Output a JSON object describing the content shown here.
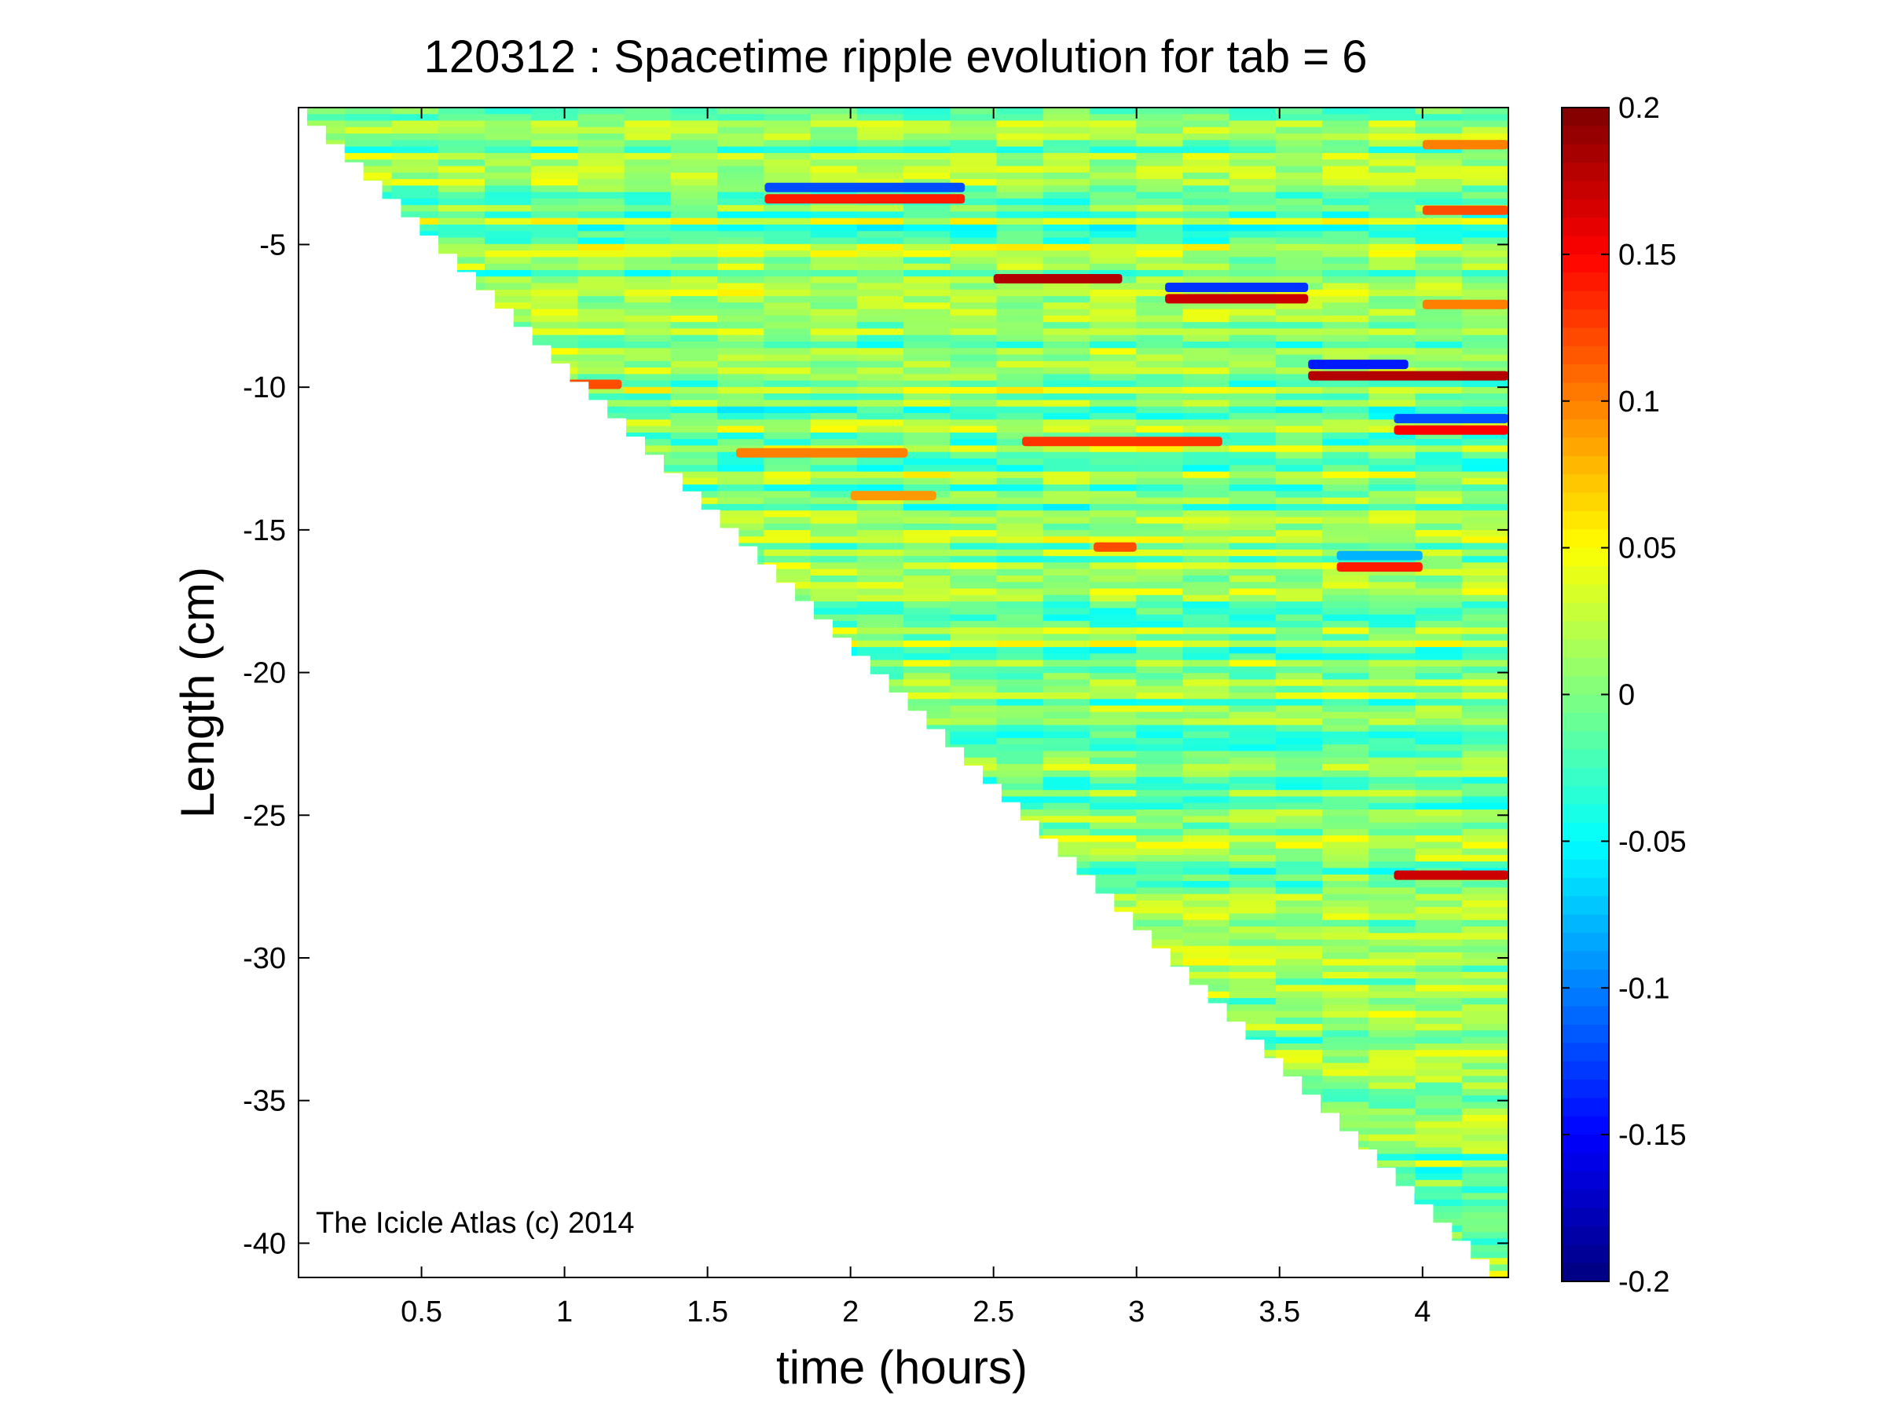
{
  "chart_data": {
    "type": "heatmap",
    "title": "120312 : Spacetime ripple evolution for tab = 6",
    "xlabel": "time (hours)",
    "ylabel": "Length (cm)",
    "xlim": [
      0.07,
      4.3
    ],
    "ylim": [
      -41.2,
      -0.2
    ],
    "xticks": [
      0.5,
      1,
      1.5,
      2,
      2.5,
      3,
      3.5,
      4
    ],
    "xtick_labels": [
      "0.5",
      "1",
      "1.5",
      "2",
      "2.5",
      "3",
      "3.5",
      "4"
    ],
    "yticks": [
      -5,
      -10,
      -15,
      -20,
      -25,
      -30,
      -35,
      -40
    ],
    "ytick_labels": [
      "-5",
      "-10",
      "-15",
      "-20",
      "-25",
      "-30",
      "-35",
      "-40"
    ],
    "colorbar": {
      "range": [
        -0.2,
        0.2
      ],
      "ticks": [
        0.2,
        0.15,
        0.1,
        0.05,
        0,
        -0.05,
        -0.1,
        -0.15,
        -0.2
      ],
      "tick_labels": [
        "0.2",
        "0.15",
        "0.1",
        "0.05",
        "0",
        "-0.05",
        "-0.1",
        "-0.15",
        "-0.2"
      ],
      "colormap": "jet"
    },
    "data_region": {
      "description_free_boundary": "values exist only where length >= -9.8 * (time - 0.1)",
      "boundary_points": [
        [
          0.1,
          -0.2
        ],
        [
          4.3,
          -41.2
        ]
      ]
    },
    "features": [
      {
        "t0": 1.7,
        "t1": 2.4,
        "y": -3.0,
        "v": -0.12
      },
      {
        "t0": 1.7,
        "t1": 2.4,
        "y": -3.4,
        "v": 0.14
      },
      {
        "t0": 2.5,
        "t1": 2.95,
        "y": -6.2,
        "v": 0.18
      },
      {
        "t0": 3.1,
        "t1": 3.6,
        "y": -6.5,
        "v": -0.13
      },
      {
        "t0": 3.1,
        "t1": 3.6,
        "y": -6.9,
        "v": 0.17
      },
      {
        "t0": 0.95,
        "t1": 1.2,
        "y": -9.9,
        "v": 0.12
      },
      {
        "t0": 3.6,
        "t1": 3.95,
        "y": -9.2,
        "v": -0.14
      },
      {
        "t0": 3.6,
        "t1": 4.3,
        "y": -9.6,
        "v": 0.18
      },
      {
        "t0": 2.6,
        "t1": 3.3,
        "y": -11.9,
        "v": 0.13
      },
      {
        "t0": 3.9,
        "t1": 4.3,
        "y": -11.5,
        "v": 0.15
      },
      {
        "t0": 3.9,
        "t1": 4.3,
        "y": -11.1,
        "v": -0.12
      },
      {
        "t0": 1.6,
        "t1": 2.2,
        "y": -12.3,
        "v": 0.1
      },
      {
        "t0": 3.7,
        "t1": 4.0,
        "y": -16.3,
        "v": 0.14
      },
      {
        "t0": 3.7,
        "t1": 4.0,
        "y": -15.9,
        "v": -0.08
      },
      {
        "t0": 2.85,
        "t1": 3.0,
        "y": -15.6,
        "v": 0.12
      },
      {
        "t0": 3.9,
        "t1": 4.3,
        "y": -27.1,
        "v": 0.17
      },
      {
        "t0": 4.0,
        "t1": 4.3,
        "y": -1.5,
        "v": 0.1
      },
      {
        "t0": 4.0,
        "t1": 4.3,
        "y": -3.8,
        "v": 0.12
      },
      {
        "t0": 4.0,
        "t1": 4.3,
        "y": -7.1,
        "v": 0.1
      },
      {
        "t0": 2.0,
        "t1": 2.3,
        "y": -13.8,
        "v": 0.09
      }
    ]
  },
  "watermark": "The Icicle Atlas (c) 2014"
}
